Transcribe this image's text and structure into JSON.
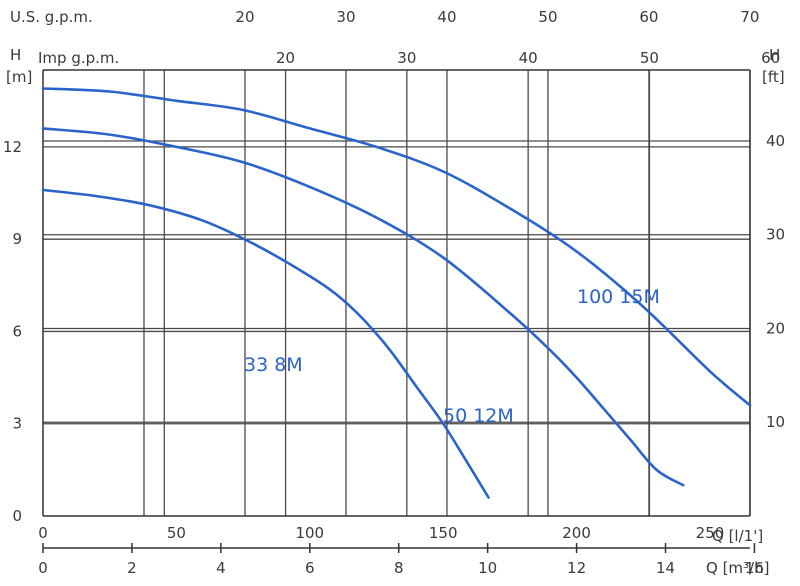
{
  "chart_data": {
    "type": "line",
    "title": "",
    "colors": {
      "curve": "#2a63c9",
      "grid": "#4a4a4a",
      "text": "#3a3a3a"
    },
    "grid": true,
    "axes": {
      "x_primary": {
        "label": "Q [l/1']",
        "range": [
          0,
          265
        ],
        "ticks": [
          0,
          50,
          100,
          150,
          200,
          250
        ]
      },
      "x_bottom": {
        "label": "Q [m³/h]",
        "range": [
          0,
          15.9
        ],
        "ticks": [
          0,
          2,
          4,
          6,
          8,
          10,
          12,
          14,
          16
        ]
      },
      "x_us_gpm": {
        "label": "U.S. g.p.m.",
        "ticks": [
          20,
          30,
          40,
          50,
          60,
          70
        ]
      },
      "x_imp_gpm": {
        "label": "Imp g.p.m.",
        "ticks": [
          20,
          30,
          40,
          50,
          60
        ]
      },
      "y_left": {
        "label": "H",
        "unit": "[m]",
        "range": [
          0,
          14.5
        ],
        "ticks": [
          0,
          3,
          6,
          9,
          12
        ]
      },
      "y_right": {
        "label": "H",
        "unit": "[ft]",
        "ticks": [
          10,
          20,
          30,
          40
        ]
      }
    },
    "series": [
      {
        "name": "33 8M",
        "x": [
          0,
          20,
          40,
          60,
          80,
          100,
          110,
          120,
          130,
          140,
          150,
          160,
          167
        ],
        "y": [
          10.6,
          10.4,
          10.1,
          9.6,
          8.8,
          7.8,
          7.2,
          6.4,
          5.4,
          4.2,
          3.0,
          1.6,
          0.6
        ]
      },
      {
        "name": "50 12M",
        "x": [
          0,
          25,
          50,
          75,
          100,
          125,
          150,
          175,
          190,
          200,
          210,
          220,
          230,
          240
        ],
        "y": [
          12.6,
          12.4,
          12.0,
          11.5,
          10.7,
          9.7,
          8.4,
          6.6,
          5.4,
          4.5,
          3.5,
          2.5,
          1.5,
          1.0
        ]
      },
      {
        "name": "100 15M",
        "x": [
          0,
          25,
          50,
          75,
          100,
          125,
          150,
          175,
          200,
          225,
          250,
          265
        ],
        "y": [
          13.9,
          13.8,
          13.5,
          13.2,
          12.6,
          12.0,
          11.2,
          10.0,
          8.6,
          6.8,
          4.7,
          3.6
        ]
      }
    ],
    "curve_labels": [
      {
        "text": "33 8M",
        "series": "33 8M"
      },
      {
        "text": "50 12M",
        "series": "50 12M"
      },
      {
        "text": "100 15M",
        "series": "100 15M"
      }
    ]
  }
}
